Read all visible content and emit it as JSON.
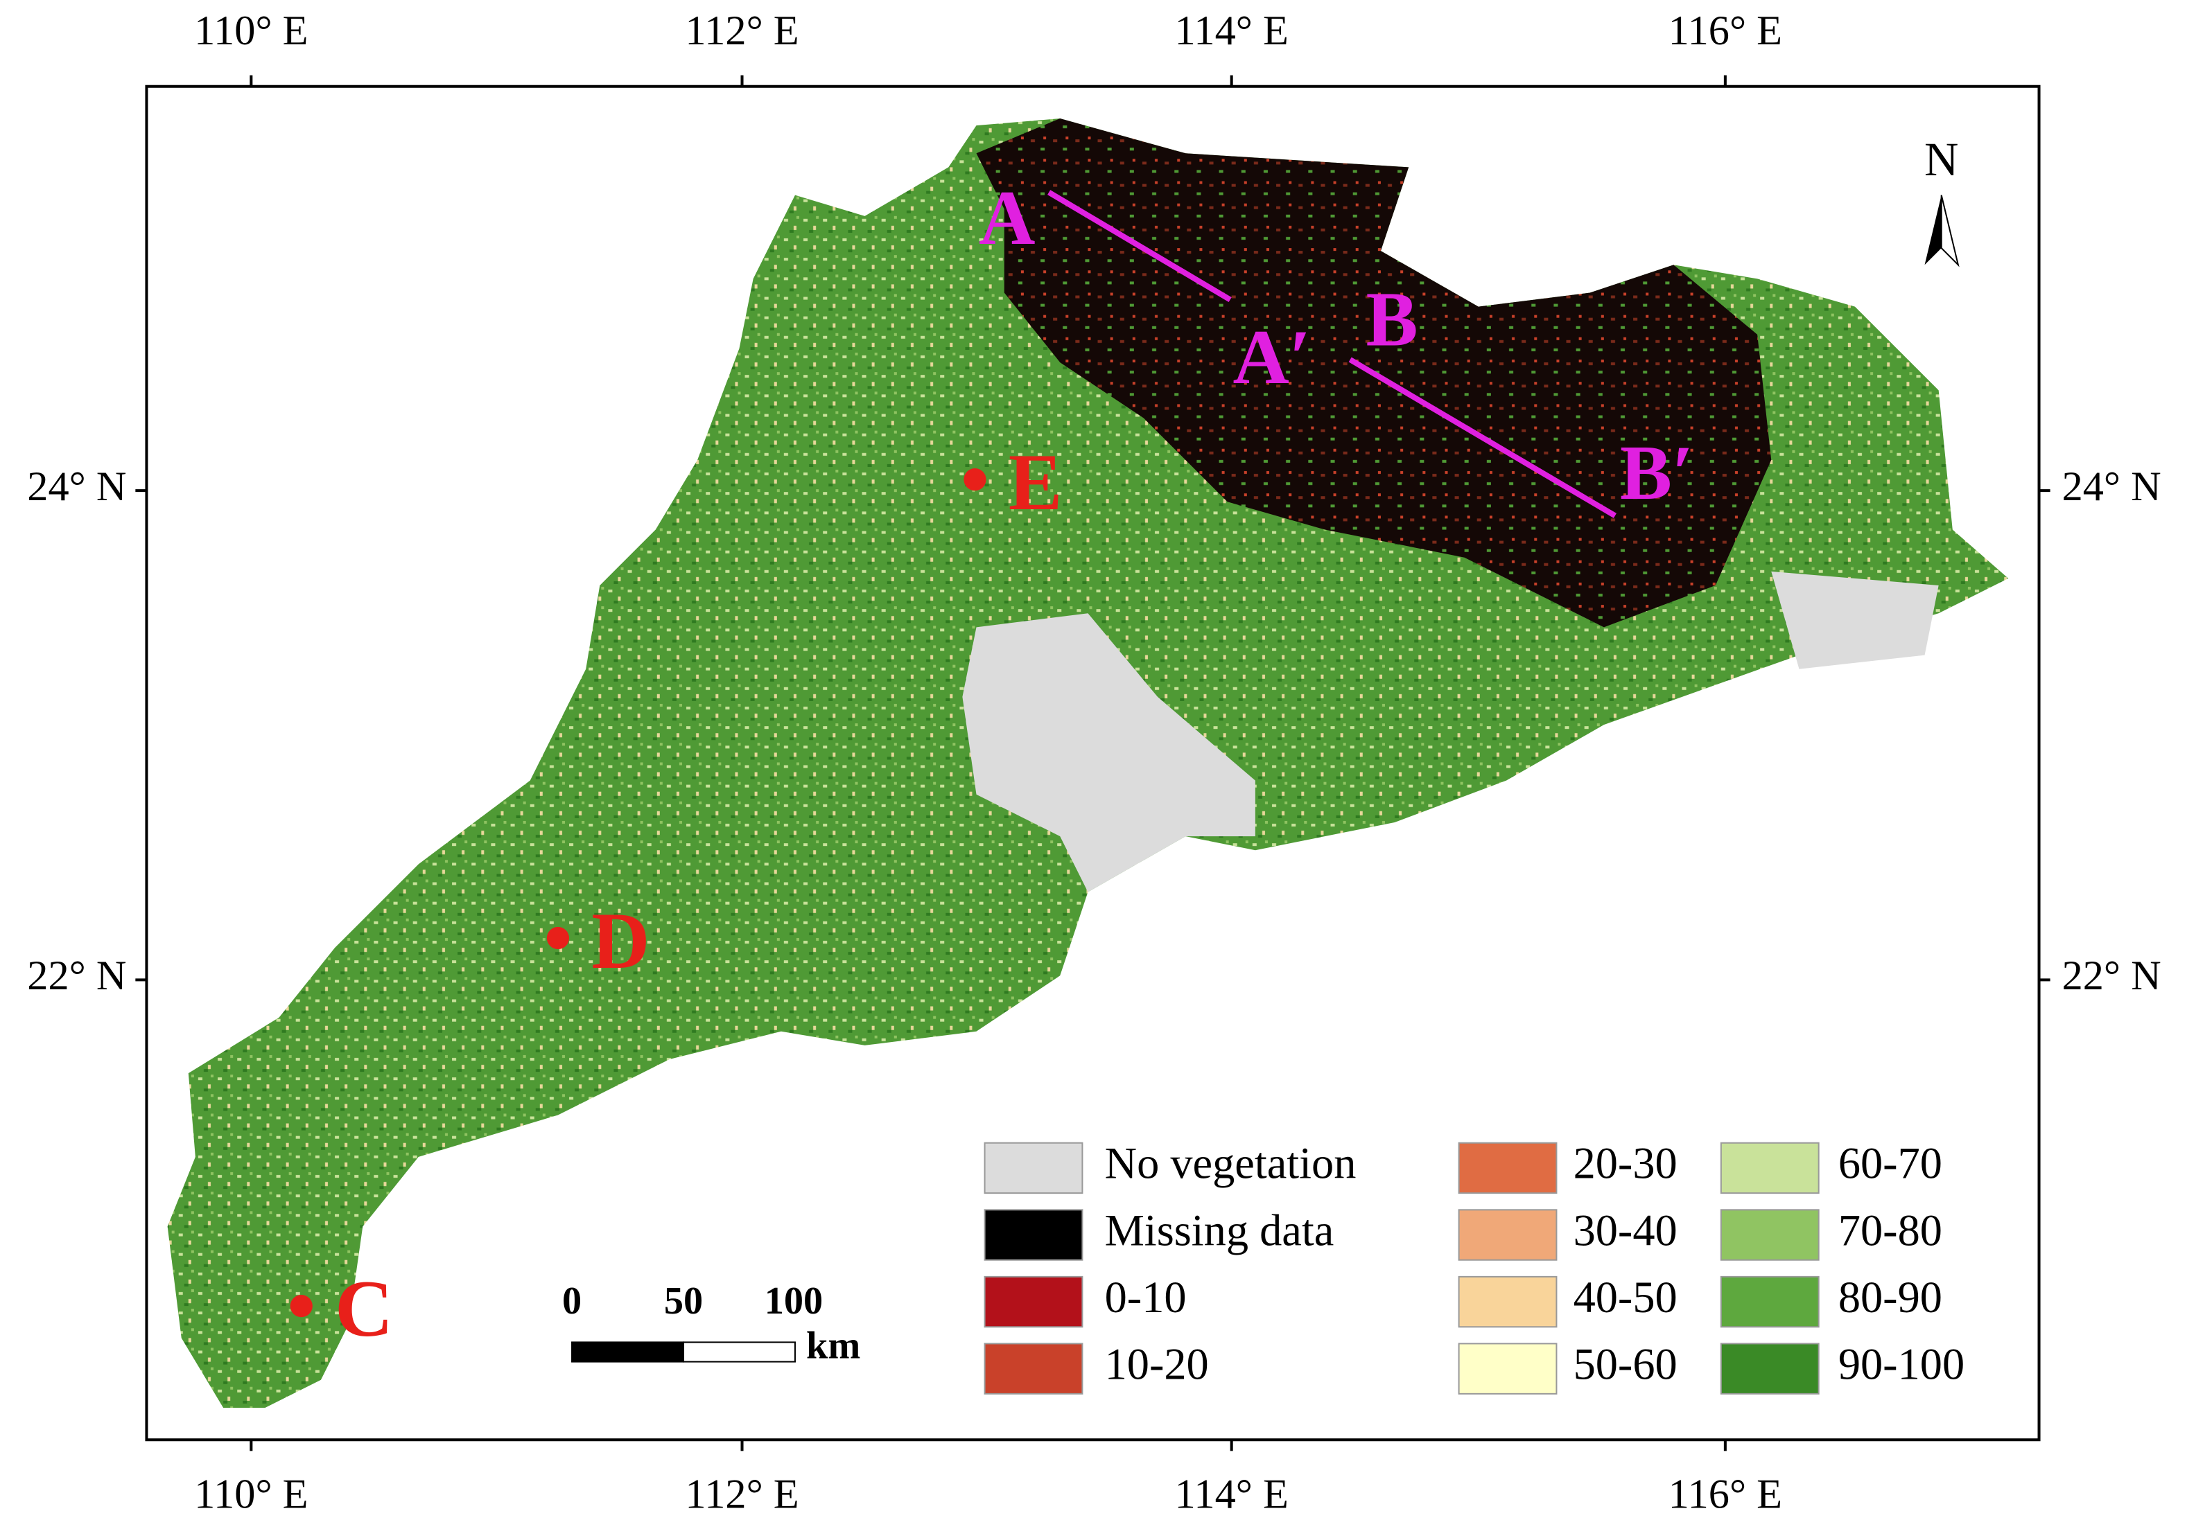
{
  "map": {
    "x_tick_labels": [
      "110° E",
      "112° E",
      "114° E",
      "116° E"
    ],
    "y_tick_labels": [
      "24° N",
      "22° N"
    ],
    "north": "N",
    "transects": [
      {
        "start": "A",
        "end": "A′"
      },
      {
        "start": "B",
        "end": "B′"
      }
    ],
    "points": [
      "E",
      "D",
      "C"
    ],
    "point_color": "#e8201a",
    "transect_color": "#e020e0",
    "scale_bar": {
      "labels": [
        "0",
        "50",
        "100"
      ],
      "unit": "km"
    },
    "legend": [
      {
        "label": "No vegetation",
        "color": "#dcdcdc"
      },
      {
        "label": "Missing data",
        "color": "#000000"
      },
      {
        "label": "0-10",
        "color": "#b3111a"
      },
      {
        "label": "10-20",
        "color": "#c9412a"
      },
      {
        "label": "20-30",
        "color": "#e06c43"
      },
      {
        "label": "30-40",
        "color": "#f0a878"
      },
      {
        "label": "40-50",
        "color": "#f9d49a"
      },
      {
        "label": "50-60",
        "color": "#ffffc8"
      },
      {
        "label": "60-70",
        "color": "#c9e29a"
      },
      {
        "label": "70-80",
        "color": "#90c462"
      },
      {
        "label": "80-90",
        "color": "#5ea83e"
      },
      {
        "label": "90-100",
        "color": "#3a8a26"
      }
    ]
  }
}
